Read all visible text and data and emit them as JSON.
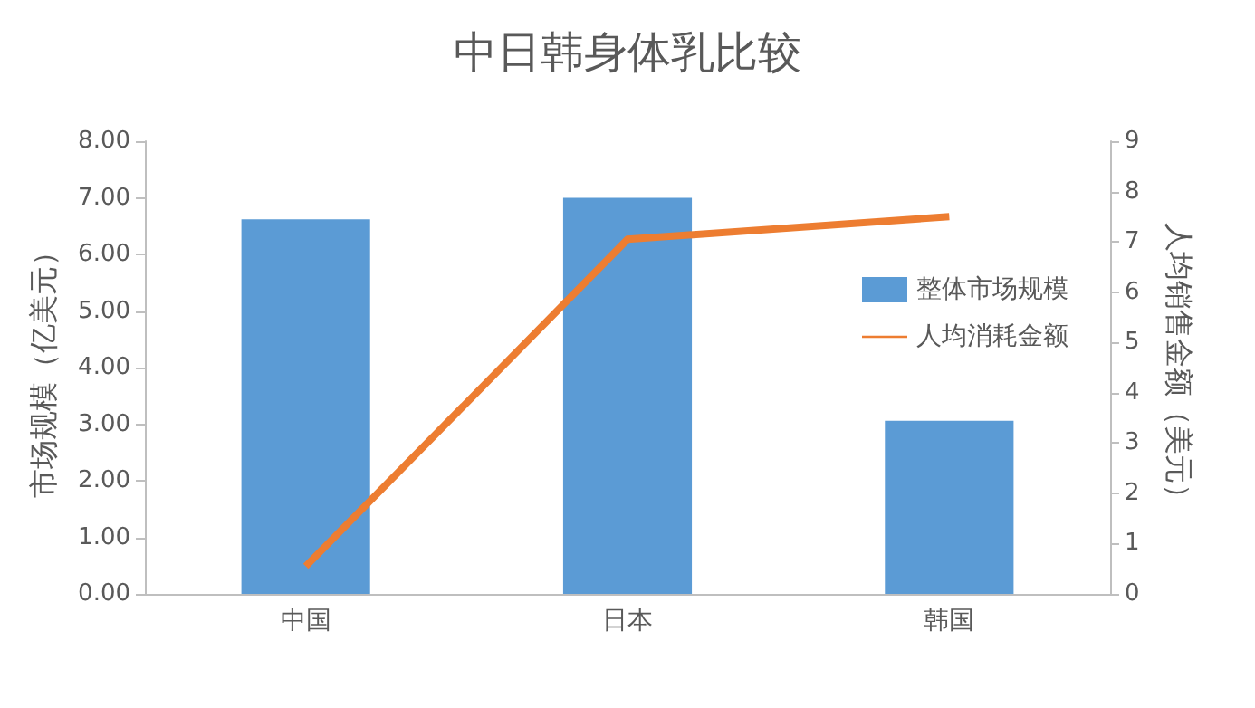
{
  "chart_data": {
    "type": "bar",
    "title": "中日韩身体乳比较",
    "categories": [
      "中国",
      "日本",
      "韩国"
    ],
    "series": [
      {
        "name": "整体市场规模",
        "color": "#5b9bd5",
        "values": [
          6.62,
          7.0,
          3.06
        ]
      },
      {
        "name": "人均消耗金额",
        "type": "line",
        "axis": "y2",
        "color": "#ed7d31",
        "values": [
          0.55,
          7.05,
          7.5
        ]
      }
    ],
    "ylabel": "市场规模（亿美元）",
    "y2label": "人均销售金额（美元）",
    "ylim": [
      0,
      8
    ],
    "yticks": [
      {
        "value": 0,
        "label": "0.00"
      },
      {
        "value": 1,
        "label": "1.00"
      },
      {
        "value": 2,
        "label": "2.00"
      },
      {
        "value": 3,
        "label": "3.00"
      },
      {
        "value": 4,
        "label": "4.00"
      },
      {
        "value": 5,
        "label": "5.00"
      },
      {
        "value": 6,
        "label": "6.00"
      },
      {
        "value": 7,
        "label": "7.00"
      },
      {
        "value": 8,
        "label": "8.00"
      }
    ],
    "y2lim": [
      0,
      9
    ],
    "y2ticks": [
      0,
      1,
      2,
      3,
      4,
      5,
      6,
      7,
      8,
      9
    ],
    "legend": "right",
    "grid": false,
    "marker": "none"
  }
}
